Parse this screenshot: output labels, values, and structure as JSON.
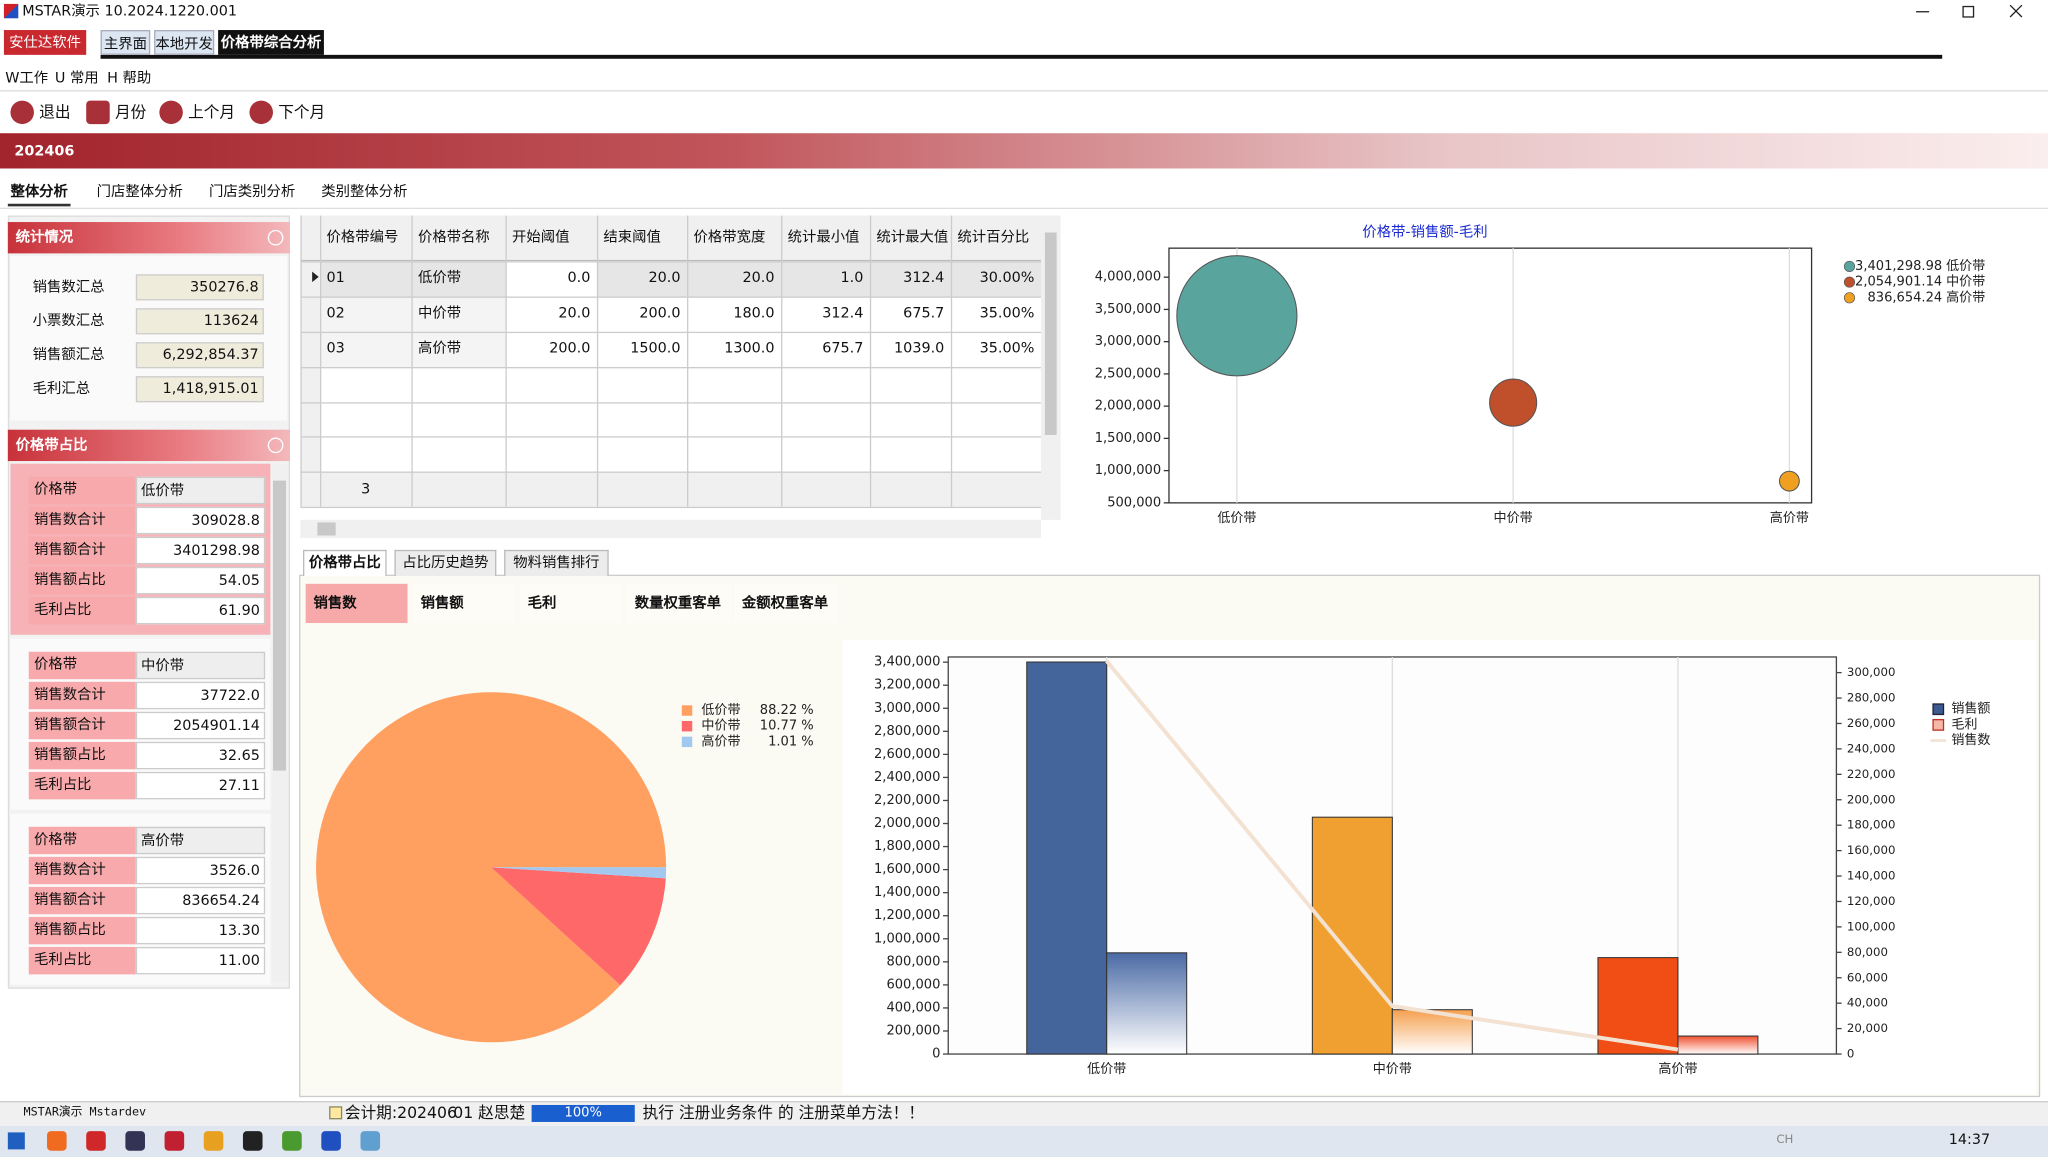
{
  "window": {
    "title": "MSTAR演示",
    "version": "10.2024.1220.001"
  },
  "tabs": [
    "安仕达软件",
    "主界面",
    "本地开发",
    "价格带综合分析"
  ],
  "menu": [
    "W工作",
    "U 常用",
    "H 帮助"
  ],
  "toolbar": [
    "退出",
    "月份",
    "上个月",
    "下个月"
  ],
  "period": "202406",
  "subtabs": [
    "整体分析",
    "门店整体分析",
    "门店类别分析",
    "类别整体分析"
  ],
  "stats": {
    "title": "统计情况",
    "rows": [
      [
        "销售数汇总",
        "350276.8"
      ],
      [
        "小票数汇总",
        "113624"
      ],
      [
        "销售额汇总",
        "6,292,854.37"
      ],
      [
        "毛利汇总",
        "1,418,915.01"
      ]
    ]
  },
  "share": {
    "title": "价格带占比",
    "groups": [
      [
        [
          "价格带",
          "低价带"
        ],
        [
          "销售数合计",
          "309028.8"
        ],
        [
          "销售额合计",
          "3401298.98"
        ],
        [
          "销售额占比",
          "54.05"
        ],
        [
          "毛利占比",
          "61.90"
        ]
      ],
      [
        [
          "价格带",
          "中价带"
        ],
        [
          "销售数合计",
          "37722.0"
        ],
        [
          "销售额合计",
          "2054901.14"
        ],
        [
          "销售额占比",
          "32.65"
        ],
        [
          "毛利占比",
          "27.11"
        ]
      ],
      [
        [
          "价格带",
          "高价带"
        ],
        [
          "销售数合计",
          "3526.0"
        ],
        [
          "销售额合计",
          "836654.24"
        ],
        [
          "销售额占比",
          "13.30"
        ],
        [
          "毛利占比",
          "11.00"
        ]
      ]
    ]
  },
  "table": {
    "headers": [
      "价格带编号",
      "价格带名称",
      "开始阈值",
      "结束阈值",
      "价格带宽度",
      "统计最小值",
      "统计最大值",
      "统计百分比"
    ],
    "rows": [
      [
        "01",
        "低价带",
        "0.0",
        "20.0",
        "20.0",
        "1.0",
        "312.4",
        "30.00%"
      ],
      [
        "02",
        "中价带",
        "20.0",
        "200.0",
        "180.0",
        "312.4",
        "675.7",
        "35.00%"
      ],
      [
        "03",
        "高价带",
        "200.0",
        "1500.0",
        "1300.0",
        "675.7",
        "1039.0",
        "35.00%"
      ]
    ],
    "footer": "3"
  },
  "bottom_tabs": [
    "价格带占比",
    "占比历史趋势",
    "物料销售排行"
  ],
  "metrics": [
    "销售数",
    "销售额",
    "毛利",
    "数量权重客单",
    "金额权重客单"
  ],
  "bubble_chart": {
    "type": "bubble",
    "title": "价格带-销售额-毛利",
    "categories": [
      "低价带",
      "中价带",
      "高价带"
    ],
    "values": [
      3401298.98,
      2054901.14,
      836654.24
    ],
    "value_labels": [
      "3,401,298.98",
      "2,054,901.14",
      "836,654.24"
    ],
    "sizes": [
      309028.8,
      37722,
      3526
    ],
    "colors": [
      "#5aa49e",
      "#c0502c",
      "#f0a020"
    ],
    "ylim": [
      500000,
      4450000
    ],
    "yticks": [
      {
        "value": 500000,
        "label": "500,000"
      },
      {
        "value": 1000000,
        "label": "1,000,000"
      },
      {
        "value": 1500000,
        "label": "1,500,000"
      },
      {
        "value": 2000000,
        "label": "2,000,000"
      },
      {
        "value": 2500000,
        "label": "2,500,000"
      },
      {
        "value": 3000000,
        "label": "3,000,000"
      },
      {
        "value": 3500000,
        "label": "3,500,000"
      },
      {
        "value": 4000000,
        "label": "4,000,000"
      }
    ],
    "grid": true
  },
  "pie_chart": {
    "type": "pie",
    "categories": [
      "低价带",
      "中价带",
      "高价带"
    ],
    "values": [
      88.22,
      10.77,
      1.01
    ],
    "value_labels": [
      "88.22 %",
      "10.77 %",
      "1.01 %"
    ],
    "colors": [
      "#ff9f60",
      "#ff6868",
      "#a2c8f0"
    ]
  },
  "bar_chart": {
    "type": "bar",
    "categories": [
      "低价带",
      "中价带",
      "高价带"
    ],
    "series": [
      {
        "name": "销售额",
        "color": "#3c5a90",
        "colors": [
          "#44659c",
          "#f0a030",
          "#f04e14"
        ],
        "values": [
          3401298.98,
          2054901.14,
          836654.24
        ]
      },
      {
        "name": "毛利",
        "color": "#f5b8a8",
        "colors": [
          "#4a6aa5",
          "#f5a050",
          "#f05030"
        ],
        "values": [
          878308,
          384668,
          156081
        ]
      },
      {
        "name": "销售数",
        "type": "line",
        "axis": "y2",
        "color": "#f3e2d2",
        "values": [
          309028.8,
          37722,
          3526
        ]
      }
    ],
    "ylim": [
      0,
      3445000
    ],
    "yticks": [
      0,
      {
        "value": 200000,
        "label": "200,000"
      },
      {
        "value": 400000,
        "label": "400,000"
      },
      {
        "value": 600000,
        "label": "600,000"
      },
      {
        "value": 800000,
        "label": "800,000"
      },
      {
        "value": 1000000,
        "label": "1,000,000"
      },
      {
        "value": 1200000,
        "label": "1,200,000"
      },
      {
        "value": 1400000,
        "label": "1,400,000"
      },
      {
        "value": 1600000,
        "label": "1,600,000"
      },
      {
        "value": 1800000,
        "label": "1,800,000"
      },
      {
        "value": 2000000,
        "label": "2,000,000"
      },
      {
        "value": 2200000,
        "label": "2,200,000"
      },
      {
        "value": 2400000,
        "label": "2,400,000"
      },
      {
        "value": 2600000,
        "label": "2,600,000"
      },
      {
        "value": 2800000,
        "label": "2,800,000"
      },
      {
        "value": 3000000,
        "label": "3,000,000"
      },
      {
        "value": 3200000,
        "label": "3,200,000"
      },
      {
        "value": 3400000,
        "label": "3,400,000"
      }
    ],
    "y2lim": [
      0,
      312300
    ],
    "y2ticks": [
      0,
      {
        "value": 20000,
        "label": "20,000"
      },
      {
        "value": 40000,
        "label": "40,000"
      },
      {
        "value": 60000,
        "label": "60,000"
      },
      {
        "value": 80000,
        "label": "80,000"
      },
      {
        "value": 100000,
        "label": "100,000"
      },
      {
        "value": 120000,
        "label": "120,000"
      },
      {
        "value": 140000,
        "label": "140,000"
      },
      {
        "value": 160000,
        "label": "160,000"
      },
      {
        "value": 180000,
        "label": "180,000"
      },
      {
        "value": 200000,
        "label": "200,000"
      },
      {
        "value": 220000,
        "label": "220,000"
      },
      {
        "value": 240000,
        "label": "240,000"
      },
      {
        "value": 260000,
        "label": "260,000"
      },
      {
        "value": 280000,
        "label": "280,000"
      },
      {
        "value": 300000,
        "label": "300,000"
      }
    ],
    "grid": true
  },
  "status": {
    "user": "MSTAR演示 Mstardev",
    "period": "会计期:202406",
    "operator": "01 赵思楚",
    "progress": "100%",
    "message": "执行 注册业务条件 的 注册菜单方法！！"
  },
  "taskbar": {
    "lang": "CH",
    "time": "14:37"
  }
}
